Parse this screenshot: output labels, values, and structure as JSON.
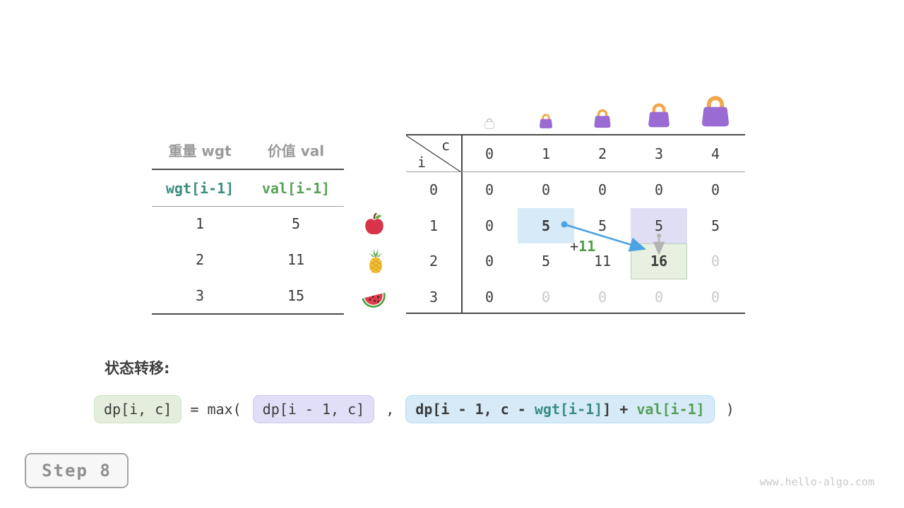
{
  "items_table": {
    "headers": [
      "重量 wgt",
      "价值 val"
    ],
    "subheaders": [
      "wgt[i-1]",
      "val[i-1]"
    ],
    "rows": [
      [
        "1",
        "5"
      ],
      [
        "2",
        "11"
      ],
      [
        "3",
        "15"
      ]
    ],
    "fruit_icons": [
      "apple-icon",
      "pineapple-icon",
      "watermelon-icon"
    ]
  },
  "dp_table": {
    "corner": {
      "col_var": "c",
      "row_var": "i"
    },
    "col_headers": [
      "0",
      "1",
      "2",
      "3",
      "4"
    ],
    "bag_icons": [
      "empty-bag-icon",
      "bag-icon-1",
      "bag-icon-2",
      "bag-icon-3",
      "bag-icon-4"
    ],
    "rows": [
      {
        "label": "0",
        "cells": [
          {
            "v": "0"
          },
          {
            "v": "0"
          },
          {
            "v": "0"
          },
          {
            "v": "0"
          },
          {
            "v": "0"
          }
        ]
      },
      {
        "label": "1",
        "cells": [
          {
            "v": "0"
          },
          {
            "v": "5",
            "bold": true,
            "hl": "blue"
          },
          {
            "v": "5"
          },
          {
            "v": "5",
            "hl": "lavender"
          },
          {
            "v": "5"
          }
        ]
      },
      {
        "label": "2",
        "cells": [
          {
            "v": "0"
          },
          {
            "v": "5"
          },
          {
            "v": "11"
          },
          {
            "v": "16",
            "bold": true,
            "hl": "green"
          },
          {
            "v": "0",
            "muted": true
          }
        ]
      },
      {
        "label": "3",
        "cells": [
          {
            "v": "0"
          },
          {
            "v": "0",
            "muted": true
          },
          {
            "v": "0",
            "muted": true
          },
          {
            "v": "0",
            "muted": true
          },
          {
            "v": "0",
            "muted": true
          }
        ]
      }
    ],
    "annotation": {
      "plus": "+",
      "value": "11"
    }
  },
  "formula": {
    "label": "状态转移:",
    "lhs": "dp[i, c]",
    "eq": " = max( ",
    "arg1": "dp[i - 1, c]",
    "comma": " , ",
    "arg2_segments": [
      "dp[i - 1, c - ",
      "wgt[i-1]",
      "] + ",
      "val[i-1]"
    ],
    "close": " )"
  },
  "step": {
    "label": "Step 8"
  },
  "watermark": "www.hello-algo.com",
  "colors": {
    "accent_teal": "#3a8c82",
    "accent_green": "#55a055",
    "arrow_blue": "#4ba3e3",
    "arrow_gray": "#b3b3b3",
    "highlight_blue": "#d6eaf8",
    "highlight_lavender": "#e0def4",
    "highlight_green": "#e7f0e1",
    "bag_purple": "#9a6bd3",
    "bag_handle_orange": "#f0a84a",
    "muted_text": "#c9c9c9"
  }
}
